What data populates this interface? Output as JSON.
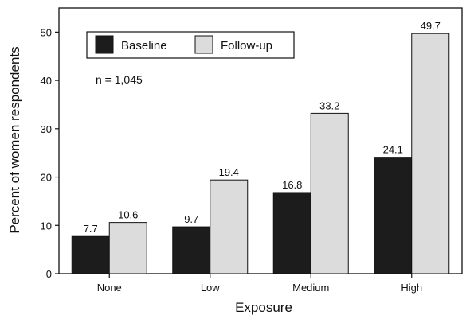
{
  "chart_data": {
    "type": "bar",
    "categories": [
      "None",
      "Low",
      "Medium",
      "High"
    ],
    "series": [
      {
        "name": "Baseline",
        "values": [
          7.7,
          9.7,
          16.8,
          24.1
        ],
        "color": "#1c1c1c"
      },
      {
        "name": "Follow-up",
        "values": [
          10.6,
          19.4,
          33.2,
          49.7
        ],
        "color": "#dcdcdc"
      }
    ],
    "value_labels": [
      [
        "7.7",
        "9.7",
        "16.8",
        "24.1"
      ],
      [
        "10.6",
        "19.4",
        "33.2",
        "49.7"
      ]
    ],
    "xlabel": "Exposure",
    "ylabel": "Percent of women respondents",
    "ylim": [
      0,
      55
    ],
    "yticks": [
      0,
      10,
      20,
      30,
      40,
      50
    ],
    "ytick_labels": [
      "0",
      "10",
      "20",
      "30",
      "40",
      "50"
    ],
    "annotation": "n = 1,045",
    "legend_placement": "top-left",
    "grid": false
  }
}
